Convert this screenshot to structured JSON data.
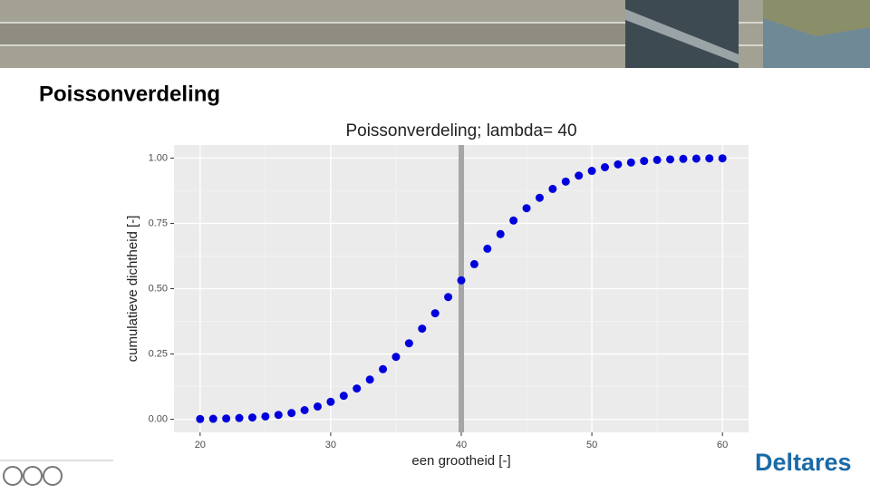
{
  "slide": {
    "title": "Poissonverdeling",
    "logo": "Deltares"
  },
  "chart_data": {
    "type": "scatter",
    "title": "Poissonverdeling; lambda= 40",
    "x_label": "een grootheid [-]",
    "y_label": "cumulatieve dichtheid [-]",
    "x": [
      20,
      21,
      22,
      23,
      24,
      25,
      26,
      27,
      28,
      29,
      30,
      31,
      32,
      33,
      34,
      35,
      36,
      37,
      38,
      39,
      40,
      41,
      42,
      43,
      44,
      45,
      46,
      47,
      48,
      49,
      50,
      51,
      52,
      53,
      54,
      55,
      56,
      57,
      58,
      59,
      60
    ],
    "values": [
      0.001,
      0.002,
      0.003,
      0.005,
      0.007,
      0.011,
      0.017,
      0.024,
      0.035,
      0.049,
      0.067,
      0.09,
      0.118,
      0.152,
      0.192,
      0.239,
      0.291,
      0.347,
      0.406,
      0.468,
      0.532,
      0.594,
      0.653,
      0.709,
      0.761,
      0.808,
      0.848,
      0.882,
      0.91,
      0.933,
      0.951,
      0.965,
      0.976,
      0.983,
      0.989,
      0.993,
      0.995,
      0.997,
      0.998,
      0.999,
      0.999
    ],
    "color": "#0000dd",
    "vline": 40,
    "vline_color": "#a6a6a6",
    "xlim": [
      18,
      62
    ],
    "ylim": [
      -0.05,
      1.05
    ],
    "xticks": [
      20,
      30,
      40,
      50,
      60
    ],
    "yticks": [
      {
        "value": 0,
        "label": "0.00"
      },
      {
        "value": 0.25,
        "label": "0.25"
      },
      {
        "value": 0.5,
        "label": "0.50"
      },
      {
        "value": 0.75,
        "label": "0.75"
      },
      {
        "value": 1,
        "label": "1.00"
      }
    ],
    "grid": true
  }
}
